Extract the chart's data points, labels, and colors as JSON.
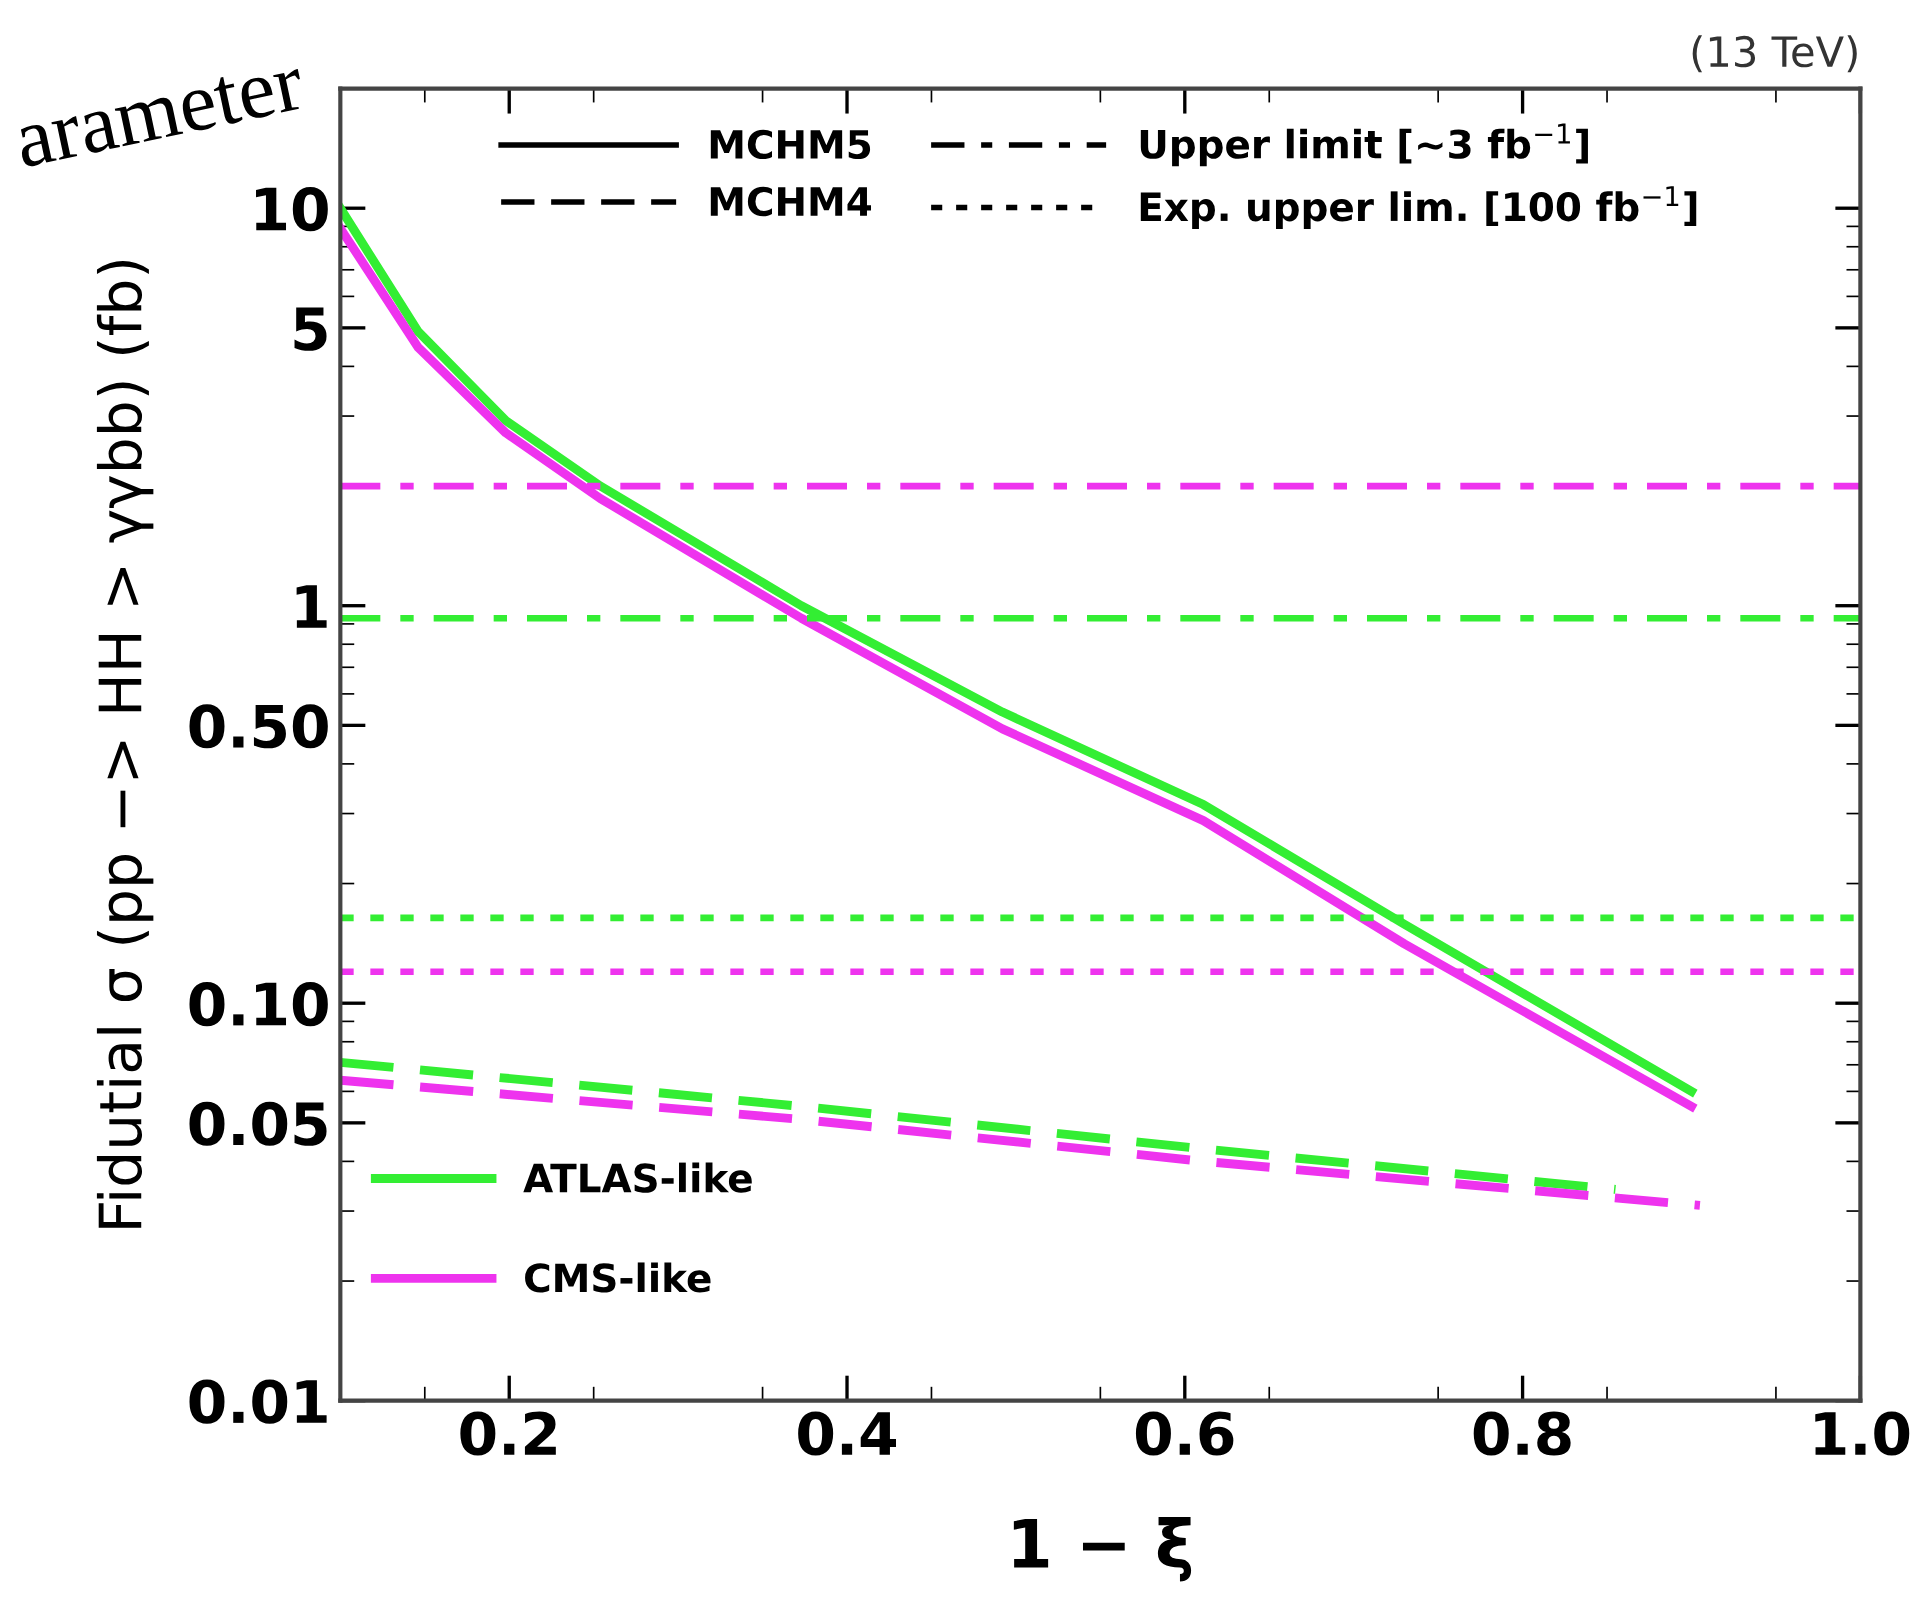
{
  "chart_data": {
    "type": "line",
    "xlabel": "1 − ξ",
    "ylabel": "Fidutial σ (pp −> HH > γγbb) (fb)",
    "annotations": [
      "(13 TeV)",
      "arameter",
      "ATLAS-like",
      "CMS-like",
      "MCHM5",
      "MCHM4",
      "Upper limit [~3 fb$^{−1}$]",
      "Exp. upper lim. [100 fb$^{−1}$]"
    ],
    "log": "y",
    "xlim": [
      0.1,
      1.0
    ],
    "xticks": [
      0.2,
      0.4,
      0.6,
      0.8,
      {
        "value": 1.0,
        "label": "1.0"
      }
    ],
    "ylim": [
      0.01,
      20
    ],
    "yticks": [
      0.01,
      0.05,
      {
        "value": 0.1,
        "label": "0.10"
      },
      {
        "value": 0.5,
        "label": "0.50"
      },
      1,
      5,
      10
    ],
    "grid": false,
    "marker": "none",
    "series": [
      {
        "color": "#33ee33",
        "line_style": "solid",
        "x": [
          0.1,
          0.146,
          0.198,
          0.254,
          0.373,
          0.492,
          0.611,
          0.73,
          0.9
        ],
        "values": [
          10,
          4.9,
          2.92,
          2.0,
          1.0,
          0.54,
          0.316,
          0.158,
          0.06
        ]
      },
      {
        "color": "#ee33ee",
        "line_style": "solid",
        "x": [
          0.1,
          0.146,
          0.198,
          0.254,
          0.373,
          0.492,
          0.611,
          0.73,
          0.9
        ],
        "values": [
          8.9,
          4.47,
          2.72,
          1.86,
          0.93,
          0.49,
          0.288,
          0.141,
          0.055
        ]
      },
      {
        "color": "#33ee33",
        "line_style": "dashed",
        "x": [
          0.1,
          0.373,
          0.611,
          0.855
        ],
        "values": [
          0.071,
          0.055,
          0.043,
          0.034
        ]
      },
      {
        "color": "#ee33ee",
        "line_style": "dashed",
        "x": [
          0.1,
          0.373,
          0.611,
          0.905
        ],
        "values": [
          0.064,
          0.051,
          0.04,
          0.031
        ]
      }
    ],
    "ref_lines": [
      {
        "axis": "y",
        "value": 0.93,
        "color": "#33ee33",
        "line_style": "dashdot"
      },
      {
        "axis": "y",
        "value": 2.0,
        "color": "#ee33ee",
        "line_style": "dashdot"
      },
      {
        "axis": "y",
        "value": 0.164,
        "color": "#33ee33",
        "line_style": "dotted"
      },
      {
        "axis": "y",
        "value": 0.12,
        "color": "#ee33ee",
        "line_style": "dotted"
      }
    ]
  }
}
